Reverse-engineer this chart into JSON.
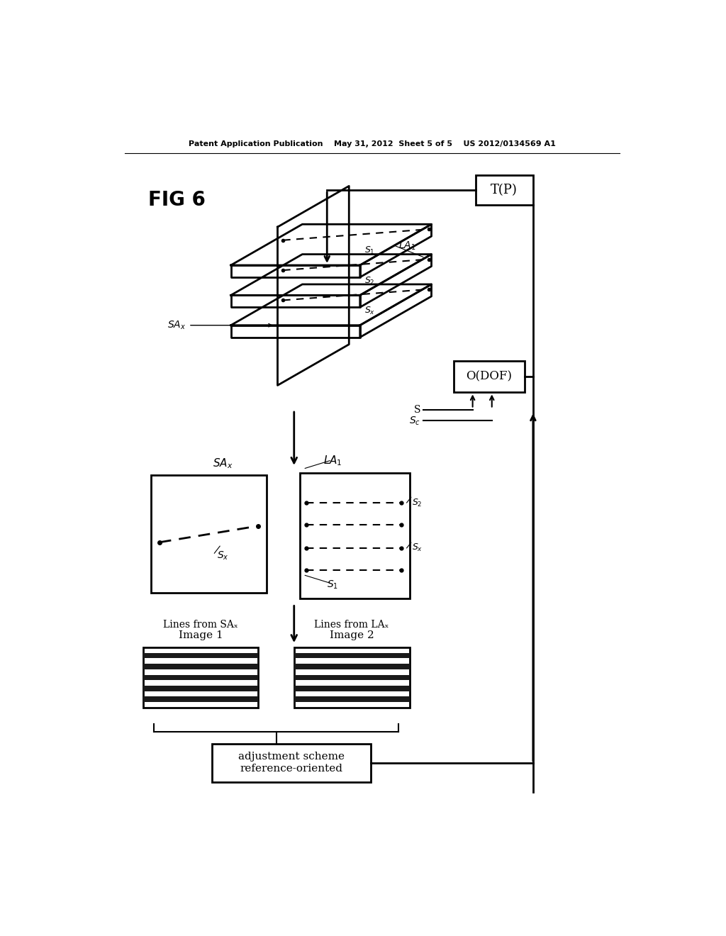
{
  "header": "Patent Application Publication    May 31, 2012  Sheet 5 of 5    US 2012/0134569 A1",
  "fig_label": "FIG 6",
  "tp_label": "T(P)",
  "odof_label": "O(DOF)",
  "s_label": "S",
  "sc_label": "Sc",
  "la1_label": "LA₁",
  "sax_label": "SAₓ",
  "s1_label": "S₁",
  "s2_label": "S₂",
  "sx_label": "Sₓ",
  "img1_title": "Image 1",
  "img1_sub": "Lines from SAₓ",
  "img2_title": "Image 2",
  "img2_sub": "Lines from LAₓ",
  "ref_line1": "reference-oriented",
  "ref_line2": "adjustment scheme",
  "bg_color": "#ffffff",
  "lw": 1.5,
  "lw_thick": 2.0
}
